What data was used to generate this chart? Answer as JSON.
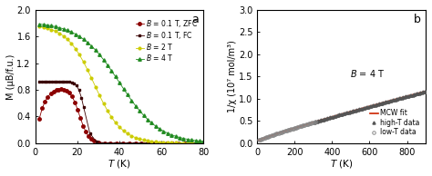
{
  "panel_a": {
    "label": "a",
    "xlabel": "T (K)",
    "ylabel": "M (μB/f.u.)",
    "xlim": [
      0,
      80
    ],
    "ylim": [
      0,
      2.0
    ],
    "yticks": [
      0.0,
      0.4,
      0.8,
      1.2,
      1.6,
      2.0
    ],
    "xticks": [
      0,
      20,
      40,
      60,
      80
    ],
    "legend_labels": [
      "$B$ = 0.1 T, ZFC",
      "$B$ = 0.1 T, FC",
      "$B$ = 2 T",
      "$B$ = 4 T"
    ],
    "colors": [
      "#8B0000",
      "#3B0000",
      "#CCCC00",
      "#228B22"
    ],
    "markers": [
      "o",
      "s",
      "o",
      "^"
    ]
  },
  "panel_b": {
    "label": "b",
    "xlabel": "T (K)",
    "ylabel": "1/χ (10⁷ mol/m³)",
    "xlim": [
      0,
      900
    ],
    "ylim": [
      0,
      3.0
    ],
    "yticks": [
      0.0,
      0.5,
      1.0,
      1.5,
      2.0,
      2.5,
      3.0
    ],
    "xticks": [
      0,
      200,
      400,
      600,
      800
    ],
    "annotation": "$B$ = 4 T",
    "legend_labels": [
      "low-T data",
      "high-T data",
      "MCW fit"
    ],
    "lowT_color": "#888888",
    "highT_color": "#555555",
    "fit_color": "#CC2200"
  },
  "figure": {
    "bg_color": "#ffffff",
    "font_size": 7
  }
}
